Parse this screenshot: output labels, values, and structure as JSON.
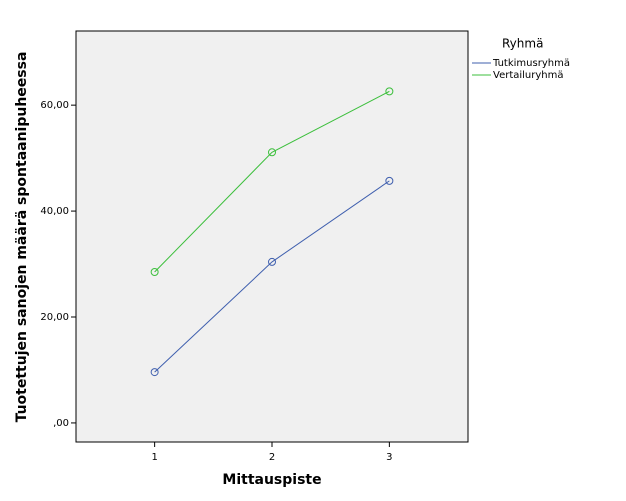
{
  "chart_data": {
    "type": "line",
    "x_label": "Mittauspiste",
    "y_label": "Tuotettujen sanojen määrä spontaanipuheessa",
    "legend_title": "Ryhmä",
    "legend_position": "right",
    "x": [
      1,
      2,
      3
    ],
    "xlim": [
      0.33,
      3.67
    ],
    "xticks": [
      1,
      2,
      3
    ],
    "ylim": [
      -3.6,
      74
    ],
    "yticks": [
      {
        "value": 0,
        "label": ",00"
      },
      {
        "value": 20,
        "label": "20,00"
      },
      {
        "value": 40,
        "label": "40,00"
      },
      {
        "value": 60,
        "label": "60,00"
      }
    ],
    "series": [
      {
        "name": "Tutkimusryhmä",
        "color": "#3f5fae",
        "values": [
          9.6,
          30.4,
          45.7
        ]
      },
      {
        "name": "Vertailuryhmä",
        "color": "#3cbf3c",
        "values": [
          28.5,
          51.1,
          62.6
        ]
      }
    ]
  }
}
